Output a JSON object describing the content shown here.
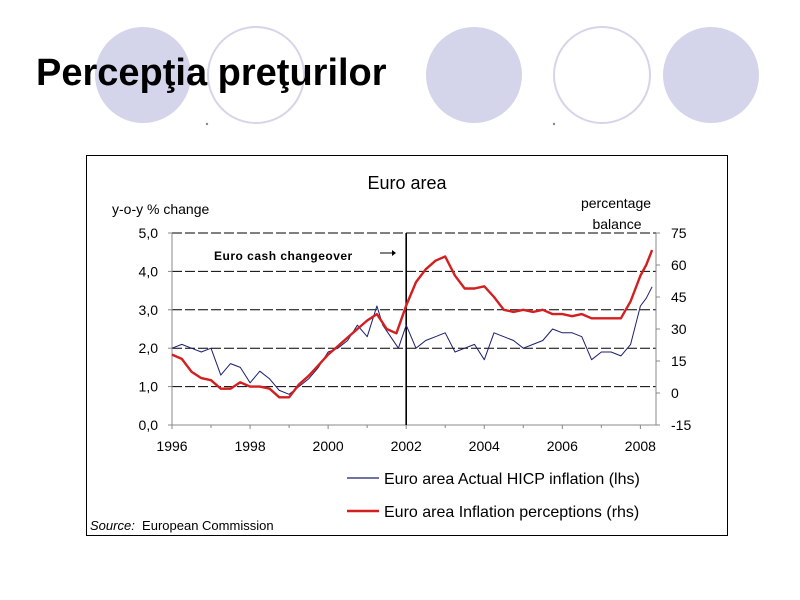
{
  "slide": {
    "title": "Percepţia preţurilor",
    "decoration_fill": "#d4d5eb",
    "decoration_outline": "#d4d5eb"
  },
  "chart_data": {
    "type": "line",
    "title": "Euro area",
    "ylabel_left": "y-o-y % change",
    "ylabel_right_line1": "percentage",
    "ylabel_right_line2": "balance",
    "ylim_left": [
      0,
      5
    ],
    "ylim_right": [
      -15,
      75
    ],
    "xlim": [
      1996,
      2008.4
    ],
    "left_ticks": [
      "5,0",
      "4,0",
      "3,0",
      "2,0",
      "1,0",
      "0,0"
    ],
    "right_ticks": [
      "75",
      "60",
      "45",
      "30",
      "15",
      "0",
      "-15"
    ],
    "x_ticks": [
      "1996",
      "1998",
      "2000",
      "2002",
      "2004",
      "2006",
      "2008"
    ],
    "grid": "dashed horizontal",
    "annotation": {
      "text": "Euro cash changeover",
      "x": 2002.0
    },
    "source_label": "Source:",
    "source_text": "European Commission",
    "series": [
      {
        "name": "Euro area Actual HICP inflation (lhs)",
        "axis": "left",
        "color": "#1b1f6e",
        "x": [
          1996.0,
          1996.25,
          1996.5,
          1996.75,
          1997.0,
          1997.25,
          1997.5,
          1997.75,
          1998.0,
          1998.25,
          1998.5,
          1998.75,
          1999.0,
          1999.25,
          1999.5,
          1999.75,
          2000.0,
          2000.25,
          2000.5,
          2000.75,
          2001.0,
          2001.25,
          2001.4,
          2001.6,
          2001.8,
          2002.0,
          2002.25,
          2002.5,
          2002.75,
          2003.0,
          2003.25,
          2003.5,
          2003.75,
          2004.0,
          2004.25,
          2004.5,
          2004.75,
          2005.0,
          2005.25,
          2005.5,
          2005.75,
          2006.0,
          2006.25,
          2006.5,
          2006.75,
          2007.0,
          2007.25,
          2007.5,
          2007.75,
          2008.0,
          2008.15,
          2008.3
        ],
        "y": [
          2.0,
          2.1,
          2.0,
          1.9,
          2.0,
          1.3,
          1.6,
          1.5,
          1.1,
          1.4,
          1.2,
          0.9,
          0.8,
          1.0,
          1.2,
          1.5,
          1.9,
          2.0,
          2.2,
          2.6,
          2.3,
          3.1,
          2.6,
          2.3,
          2.0,
          2.6,
          2.0,
          2.2,
          2.3,
          2.4,
          1.9,
          2.0,
          2.1,
          1.7,
          2.4,
          2.3,
          2.2,
          2.0,
          2.1,
          2.2,
          2.5,
          2.4,
          2.4,
          2.3,
          1.7,
          1.9,
          1.9,
          1.8,
          2.1,
          3.1,
          3.3,
          3.6
        ]
      },
      {
        "name": "Euro area Inflation perceptions (rhs)",
        "axis": "right",
        "color": "#d21f1f",
        "x": [
          1996.0,
          1996.25,
          1996.5,
          1996.75,
          1997.0,
          1997.25,
          1997.5,
          1997.75,
          1998.0,
          1998.25,
          1998.5,
          1998.75,
          1999.0,
          1999.25,
          1999.5,
          1999.75,
          2000.0,
          2000.25,
          2000.5,
          2000.75,
          2001.0,
          2001.25,
          2001.5,
          2001.75,
          2002.0,
          2002.25,
          2002.5,
          2002.75,
          2003.0,
          2003.25,
          2003.5,
          2003.75,
          2004.0,
          2004.25,
          2004.5,
          2004.75,
          2005.0,
          2005.25,
          2005.5,
          2005.75,
          2006.0,
          2006.25,
          2006.5,
          2006.75,
          2007.0,
          2007.25,
          2007.5,
          2007.75,
          2008.0,
          2008.15,
          2008.3
        ],
        "y": [
          18,
          16,
          10,
          7,
          6,
          2,
          2,
          5,
          3,
          3,
          2,
          -2,
          -2,
          4,
          8,
          13,
          18,
          22,
          26,
          30,
          34,
          37,
          30,
          28,
          41,
          52,
          58,
          62,
          64,
          55,
          49,
          49,
          50,
          45,
          39,
          38,
          39,
          38,
          39,
          37,
          37,
          36,
          37,
          35,
          35,
          35,
          35,
          43,
          55,
          60,
          67
        ]
      }
    ]
  }
}
